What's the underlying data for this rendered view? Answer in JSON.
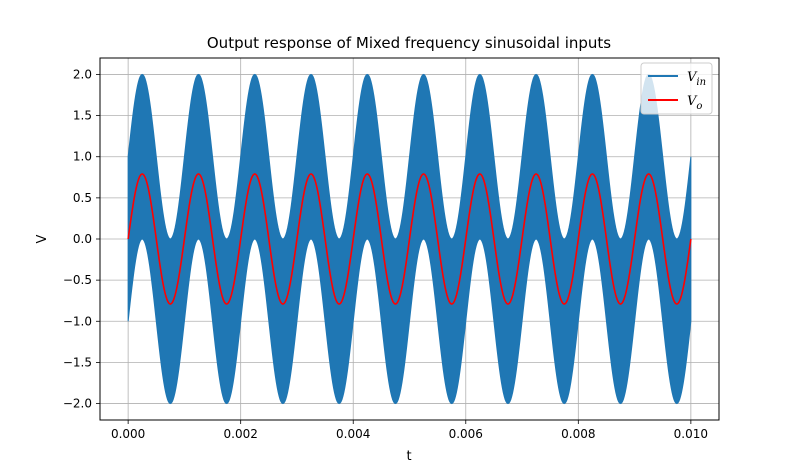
{
  "chart_data": {
    "type": "line",
    "title": "Output response of Mixed frequency sinusoidal inputs",
    "xlabel": "t",
    "ylabel": "V",
    "xlim": [
      -0.0005,
      0.0105
    ],
    "ylim": [
      -2.2,
      2.2
    ],
    "xticks": [
      0.0,
      0.002,
      0.004,
      0.006,
      0.008,
      0.01
    ],
    "xtick_labels": [
      "0.000",
      "0.002",
      "0.004",
      "0.006",
      "0.008",
      "0.010"
    ],
    "yticks": [
      -2.0,
      -1.5,
      -1.0,
      -0.5,
      0.0,
      0.5,
      1.0,
      1.5,
      2.0
    ],
    "ytick_labels": [
      "−2.0",
      "−1.5",
      "−1.0",
      "−0.5",
      "0.0",
      "0.5",
      "1.0",
      "1.5",
      "2.0"
    ],
    "grid": true,
    "legend": {
      "placement": "top-right"
    },
    "series": [
      {
        "name_main": "V",
        "name_sub": "in",
        "color": "#1f77b4",
        "kind": "mixed-frequency band",
        "x_range": [
          0.0,
          0.01
        ],
        "low_freq_hz": 1000,
        "low_freq_amplitude": 1.0,
        "high_freq_amplitude": 1.0,
        "envelope_max": 2.0,
        "envelope_min": -2.0
      },
      {
        "name_main": "V",
        "name_sub": "o",
        "color": "#ff0000",
        "kind": "sinusoid",
        "x_range": [
          0.0,
          0.01
        ],
        "freq_hz": 1000,
        "amplitude": 0.79
      }
    ]
  }
}
